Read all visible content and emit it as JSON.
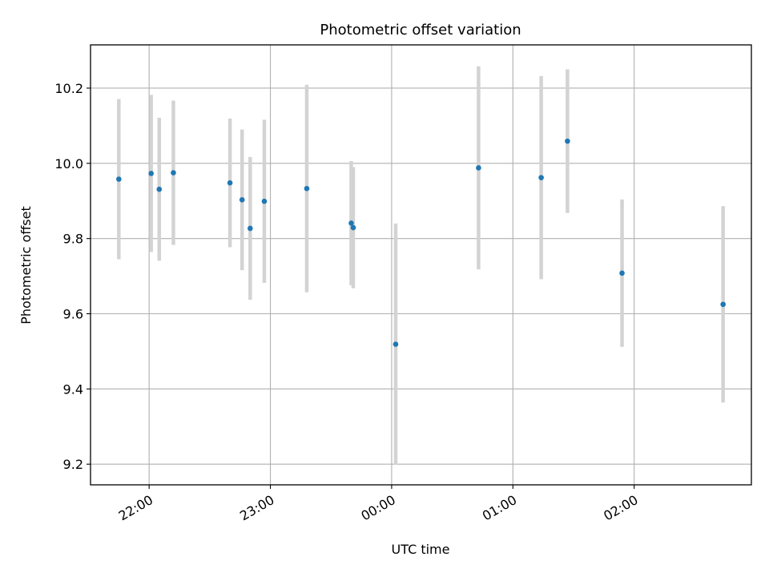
{
  "chart_data": {
    "type": "scatter",
    "title": "Photometric offset variation",
    "xlabel": "UTC time",
    "ylabel": "Photometric offset",
    "x_unit": "time (hours, UTC; values past midnight continue as 24+)",
    "xlim": [
      "21:31",
      "02:58"
    ],
    "ylim": [
      9.145,
      10.315
    ],
    "xticks": [
      "22:00",
      "23:00",
      "00:00",
      "01:00",
      "02:00"
    ],
    "yticks": [
      "9.2",
      "9.4",
      "9.6",
      "9.8",
      "10.0",
      "10.2"
    ],
    "grid": true,
    "point_color": "#1f77b4",
    "errorbar_color": "#d3d3d3",
    "points": [
      {
        "t": "21:45",
        "y": 9.958,
        "err": 0.213
      },
      {
        "t": "22:01",
        "y": 9.973,
        "err": 0.209
      },
      {
        "t": "22:05",
        "y": 9.931,
        "err": 0.19
      },
      {
        "t": "22:12",
        "y": 9.975,
        "err": 0.192
      },
      {
        "t": "22:40",
        "y": 9.948,
        "err": 0.171
      },
      {
        "t": "22:46",
        "y": 9.903,
        "err": 0.187
      },
      {
        "t": "22:50",
        "y": 9.827,
        "err": 0.19
      },
      {
        "t": "22:57",
        "y": 9.899,
        "err": 0.217
      },
      {
        "t": "23:18",
        "y": 9.933,
        "err": 0.276
      },
      {
        "t": "23:40",
        "y": 9.841,
        "err": 0.165
      },
      {
        "t": "23:41",
        "y": 9.829,
        "err": 0.161
      },
      {
        "t": "00:02",
        "y": 9.519,
        "err": 0.321
      },
      {
        "t": "00:43",
        "y": 9.988,
        "err": 0.27
      },
      {
        "t": "01:14",
        "y": 9.962,
        "err": 0.27
      },
      {
        "t": "01:27",
        "y": 10.059,
        "err": 0.191
      },
      {
        "t": "01:54",
        "y": 9.708,
        "err": 0.196
      },
      {
        "t": "02:44",
        "y": 9.625,
        "err": 0.261
      }
    ]
  }
}
